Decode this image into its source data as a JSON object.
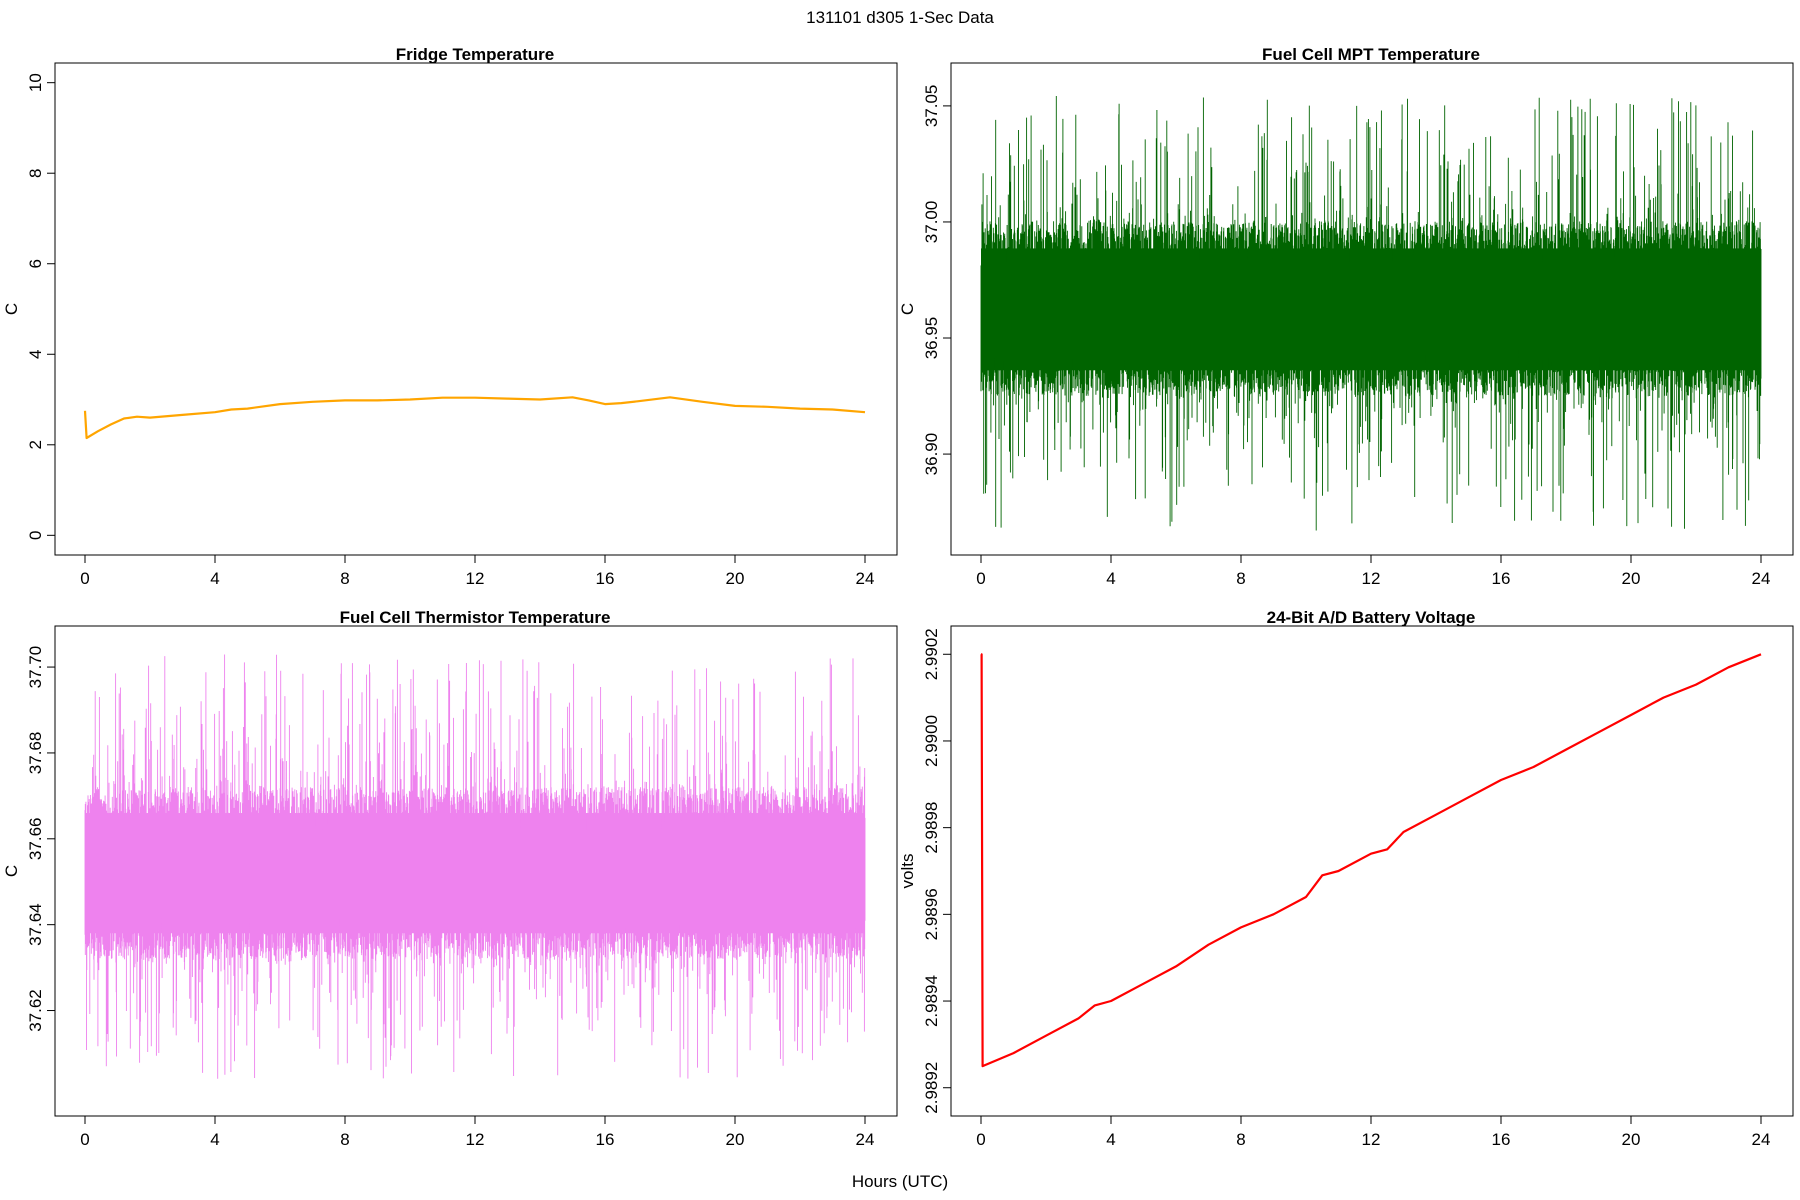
{
  "figure": {
    "suptitle": "131101   d305   1-Sec Data",
    "xlabel": "Hours (UTC)"
  },
  "chart_data": [
    {
      "type": "line",
      "title": "Fridge Temperature",
      "ylabel": "C",
      "xlabel": "",
      "xlim": [
        0,
        24
      ],
      "ylim": [
        0,
        10
      ],
      "xticks": [
        "0",
        "4",
        "8",
        "12",
        "16",
        "20",
        "24"
      ],
      "yticks": [
        "0",
        "2",
        "4",
        "6",
        "8",
        "10"
      ],
      "color": "#FFA500",
      "mode": "smooth",
      "x": [
        0,
        0.05,
        0.4,
        0.8,
        1.2,
        1.6,
        2,
        3,
        4,
        4.5,
        5,
        6,
        7,
        8,
        9,
        10,
        11,
        12,
        13,
        14,
        15,
        15.5,
        16,
        16.5,
        17,
        18,
        19,
        20,
        21,
        22,
        23,
        24
      ],
      "y": [
        2.75,
        2.15,
        2.3,
        2.45,
        2.58,
        2.62,
        2.6,
        2.66,
        2.72,
        2.78,
        2.8,
        2.9,
        2.95,
        2.98,
        2.98,
        3.0,
        3.04,
        3.04,
        3.02,
        3.0,
        3.05,
        2.98,
        2.9,
        2.92,
        2.96,
        3.05,
        2.95,
        2.86,
        2.84,
        2.8,
        2.78,
        2.72
      ]
    },
    {
      "type": "line",
      "title": "Fuel Cell MPT Temperature",
      "ylabel": "C",
      "xlabel": "",
      "xlim": [
        0,
        24
      ],
      "ylim": [
        36.865,
        37.06
      ],
      "xticks": [
        "0",
        "4",
        "8",
        "12",
        "16",
        "20",
        "24"
      ],
      "yticks": [
        "36.90",
        "36.95",
        "37.00",
        "37.05"
      ],
      "color": "#006400",
      "mode": "noise",
      "center": 36.962,
      "band_low": 36.925,
      "band_high": 37.0,
      "spike_min": 36.867,
      "spike_max": 37.055
    },
    {
      "type": "line",
      "title": "Fuel Cell Thermistor Temperature",
      "ylabel": "C",
      "xlabel": "",
      "xlim": [
        0,
        24
      ],
      "ylim": [
        37.6,
        37.705
      ],
      "xticks": [
        "0",
        "4",
        "8",
        "12",
        "16",
        "20",
        "24"
      ],
      "yticks": [
        "37.62",
        "37.64",
        "37.66",
        "37.68",
        "37.70"
      ],
      "color": "#EE82EE",
      "mode": "noise",
      "center": 37.652,
      "band_low": 37.632,
      "band_high": 37.672,
      "spike_min": 37.604,
      "spike_max": 37.703
    },
    {
      "type": "line",
      "title": "24-Bit A/D Battery Voltage",
      "ylabel": "volts",
      "xlabel": "",
      "xlim": [
        0,
        24
      ],
      "ylim": [
        2.98918,
        2.99022
      ],
      "xticks": [
        "0",
        "4",
        "8",
        "12",
        "16",
        "20",
        "24"
      ],
      "yticks": [
        "2.9892",
        "2.9894",
        "2.9896",
        "2.9898",
        "2.9900",
        "2.9902"
      ],
      "color": "#FF0000",
      "mode": "smooth",
      "x": [
        0,
        0.02,
        0.05,
        1,
        2,
        3,
        3.5,
        4,
        5,
        6,
        7,
        8,
        9,
        10,
        10.5,
        11,
        12,
        12.5,
        13,
        14,
        15,
        16,
        17,
        18,
        19,
        20,
        21,
        22,
        23,
        24
      ],
      "y": [
        2.9902,
        2.9902,
        2.98925,
        2.98928,
        2.98932,
        2.98936,
        2.98939,
        2.9894,
        2.98944,
        2.98948,
        2.98953,
        2.98957,
        2.9896,
        2.98964,
        2.98969,
        2.9897,
        2.98974,
        2.98975,
        2.98979,
        2.98983,
        2.98987,
        2.98991,
        2.98994,
        2.98998,
        2.99002,
        2.99006,
        2.9901,
        2.99013,
        2.99017,
        2.9902
      ]
    }
  ]
}
